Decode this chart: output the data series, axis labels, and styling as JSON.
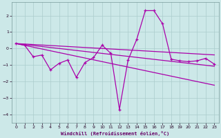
{
  "x": [
    0,
    1,
    2,
    3,
    4,
    5,
    6,
    7,
    8,
    9,
    10,
    11,
    12,
    13,
    14,
    15,
    16,
    17,
    18,
    19,
    20,
    21,
    22,
    23
  ],
  "line1": [
    0.3,
    0.2,
    -0.5,
    -0.4,
    -1.3,
    -0.9,
    -0.7,
    -1.75,
    -0.85,
    -0.55,
    0.2,
    -0.3,
    -3.7,
    -0.7,
    0.55,
    2.3,
    2.3,
    1.5,
    -0.65,
    -0.75,
    -0.8,
    -0.75,
    -0.6,
    -0.95
  ],
  "line2": [
    0.3,
    0.27,
    0.24,
    0.21,
    0.18,
    0.15,
    0.12,
    0.09,
    0.06,
    0.03,
    0.0,
    -0.03,
    -0.06,
    -0.09,
    -0.12,
    -0.15,
    -0.18,
    -0.21,
    -0.24,
    -0.27,
    -0.3,
    -0.33,
    -0.36,
    -0.39
  ],
  "line3": [
    0.3,
    0.24,
    0.18,
    0.12,
    0.06,
    0.0,
    -0.06,
    -0.12,
    -0.18,
    -0.24,
    -0.3,
    -0.36,
    -0.42,
    -0.48,
    -0.54,
    -0.6,
    -0.66,
    -0.72,
    -0.78,
    -0.84,
    -0.9,
    -0.96,
    -1.02,
    -1.08
  ],
  "line4": [
    0.3,
    0.19,
    0.08,
    -0.03,
    -0.14,
    -0.25,
    -0.36,
    -0.47,
    -0.58,
    -0.69,
    -0.8,
    -0.91,
    -1.02,
    -1.13,
    -1.24,
    -1.35,
    -1.46,
    -1.57,
    -1.68,
    -1.79,
    -1.9,
    -2.01,
    -2.12,
    -2.23
  ],
  "bg_color": "#cce8e8",
  "grid_color": "#aacccc",
  "line_color": "#aa00aa",
  "xlabel": "Windchill (Refroidissement éolien,°C)",
  "ylim": [
    -4.5,
    2.8
  ],
  "xlim": [
    -0.5,
    23.5
  ],
  "yticks": [
    -4,
    -3,
    -2,
    -1,
    0,
    1,
    2
  ]
}
